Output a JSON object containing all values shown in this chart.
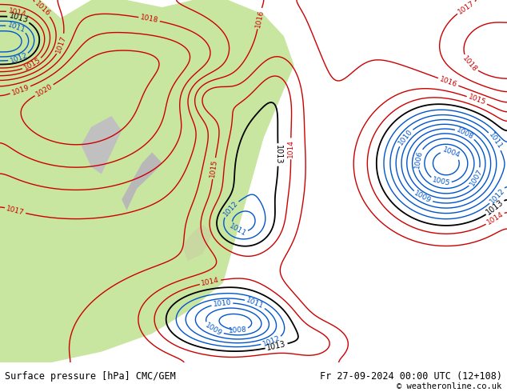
{
  "title_left": "Surface pressure [hPa] CMC/GEM",
  "title_right": "Fr 27-09-2024 00:00 UTC (12+108)",
  "copyright": "© weatheronline.co.uk",
  "bg_color": "#d0d0d0",
  "land_color_green": "#c8e6a0",
  "land_color_gray": "#c8c8c8",
  "contour_black": "#000000",
  "contour_red": "#cc0000",
  "contour_blue": "#0055cc",
  "levels_blue": [
    1004,
    1005,
    1006,
    1007,
    1008,
    1009,
    1010,
    1011,
    1012
  ],
  "levels_black": [
    1013
  ],
  "levels_red": [
    1014,
    1015,
    1016,
    1017,
    1018,
    1019,
    1020
  ],
  "bottom_bar_color": "#ffffff"
}
